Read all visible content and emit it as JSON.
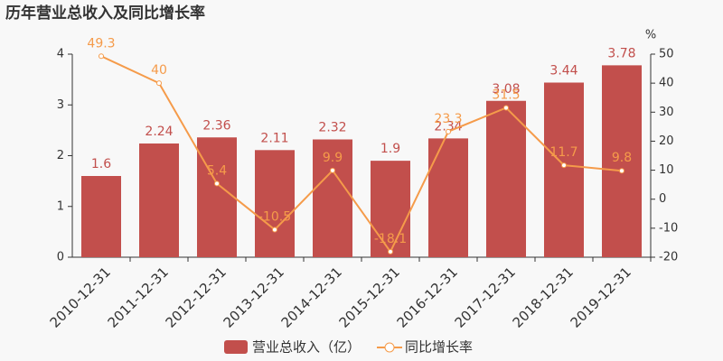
{
  "chart_data": {
    "type": "bar",
    "title": "历年营业总收入及同比增长率",
    "categories": [
      "2010-12-31",
      "2011-12-31",
      "2012-12-31",
      "2013-12-31",
      "2014-12-31",
      "2015-12-31",
      "2016-12-31",
      "2017-12-31",
      "2018-12-31",
      "2019-12-31"
    ],
    "series": [
      {
        "name": "营业总收入（亿）",
        "type": "bar",
        "color": "#c24f4c",
        "values": [
          1.6,
          2.24,
          2.36,
          2.11,
          2.32,
          1.9,
          2.34,
          3.08,
          3.44,
          3.78
        ]
      },
      {
        "name": "同比增长率",
        "type": "line",
        "axis": "y2",
        "color": "#f59b4a",
        "values": [
          49.3,
          40,
          5.4,
          -10.5,
          9.9,
          -18.1,
          23.3,
          31.5,
          11.7,
          9.8
        ]
      }
    ],
    "ylim": [
      0,
      4
    ],
    "yticks": [
      0,
      1,
      2,
      3,
      4
    ],
    "y2lim": [
      -20,
      50
    ],
    "y2ticks": [
      -20,
      -10,
      0,
      10,
      20,
      30,
      40,
      50
    ],
    "y2_label": "%",
    "grid": false
  }
}
